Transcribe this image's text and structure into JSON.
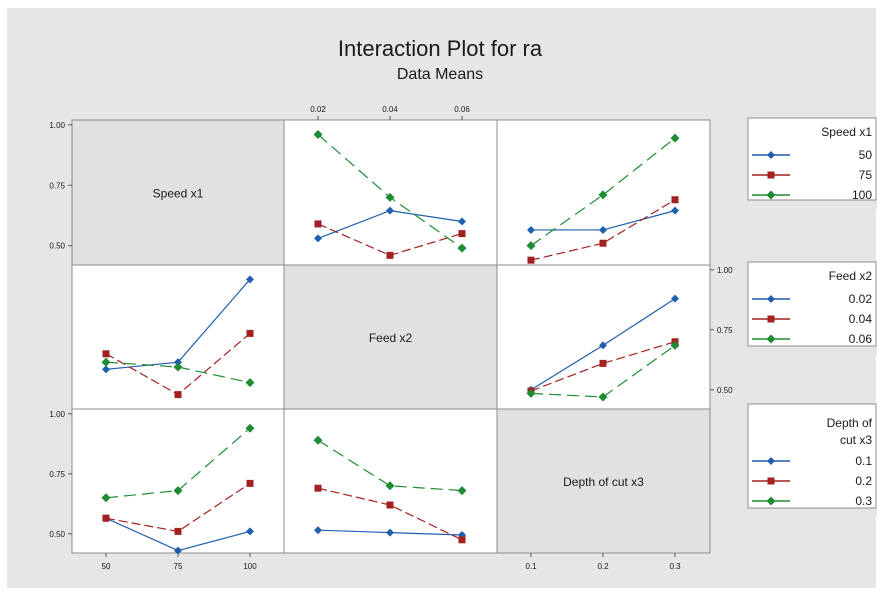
{
  "title": "Interaction Plot for ra",
  "subtitle": "Data Means",
  "colors": {
    "panel_bg": "#e6e6e6",
    "diag_bg": "#e1e1e1",
    "series1": "#1f5fae",
    "series2": "#a32020",
    "series3": "#1e8c32"
  },
  "chart_data": {
    "type": "line",
    "variables": [
      "Speed x1",
      "Feed x2",
      "Depth of cut x3"
    ],
    "levels": {
      "Speed x1": [
        "50",
        "75",
        "100"
      ],
      "Feed x2": [
        "0.02",
        "0.04",
        "0.06"
      ],
      "Depth of cut x3": [
        "0.1",
        "0.2",
        "0.3"
      ]
    },
    "y_ticks": [
      "0.50",
      "0.75",
      "1.00"
    ],
    "ylim": [
      0.42,
      1.02
    ],
    "legends": [
      {
        "title": "Speed x1",
        "entries": [
          "50",
          "75",
          "100"
        ]
      },
      {
        "title": "Feed x2",
        "entries": [
          "0.02",
          "0.04",
          "0.06"
        ]
      },
      {
        "title": "Depth of cut x3",
        "entries": [
          "0.1",
          "0.2",
          "0.3"
        ]
      }
    ],
    "panels": [
      {
        "row": 0,
        "col": 1,
        "x": [
          "0.02",
          "0.04",
          "0.06"
        ],
        "series": [
          {
            "trace": "50",
            "values": [
              0.53,
              0.645,
              0.6
            ]
          },
          {
            "trace": "75",
            "values": [
              0.59,
              0.46,
              0.55
            ]
          },
          {
            "trace": "100",
            "values": [
              0.96,
              0.7,
              0.49
            ]
          }
        ]
      },
      {
        "row": 0,
        "col": 2,
        "x": [
          "0.1",
          "0.2",
          "0.3"
        ],
        "series": [
          {
            "trace": "50",
            "values": [
              0.565,
              0.565,
              0.645
            ]
          },
          {
            "trace": "75",
            "values": [
              0.44,
              0.51,
              0.69
            ]
          },
          {
            "trace": "100",
            "values": [
              0.5,
              0.71,
              0.945
            ]
          }
        ]
      },
      {
        "row": 1,
        "col": 0,
        "x": [
          "50",
          "75",
          "100"
        ],
        "series": [
          {
            "trace": "0.02",
            "values": [
              0.585,
              0.615,
              0.96
            ]
          },
          {
            "trace": "0.04",
            "values": [
              0.65,
              0.48,
              0.735
            ]
          },
          {
            "trace": "0.06",
            "values": [
              0.615,
              0.595,
              0.53
            ]
          }
        ]
      },
      {
        "row": 1,
        "col": 2,
        "x": [
          "0.1",
          "0.2",
          "0.3"
        ],
        "series": [
          {
            "trace": "0.02",
            "values": [
              0.5,
              0.685,
              0.88
            ]
          },
          {
            "trace": "0.04",
            "values": [
              0.495,
              0.61,
              0.7
            ]
          },
          {
            "trace": "0.06",
            "values": [
              0.485,
              0.47,
              0.685
            ]
          }
        ]
      },
      {
        "row": 2,
        "col": 0,
        "x": [
          "50",
          "75",
          "100"
        ],
        "series": [
          {
            "trace": "0.1",
            "values": [
              0.565,
              0.43,
              0.51
            ]
          },
          {
            "trace": "0.2",
            "values": [
              0.565,
              0.51,
              0.71
            ]
          },
          {
            "trace": "0.3",
            "values": [
              0.65,
              0.68,
              0.94
            ]
          }
        ]
      },
      {
        "row": 2,
        "col": 1,
        "x": [
          "0.02",
          "0.04",
          "0.06"
        ],
        "series": [
          {
            "trace": "0.1",
            "values": [
              0.515,
              0.505,
              0.495
            ]
          },
          {
            "trace": "0.2",
            "values": [
              0.69,
              0.62,
              0.475
            ]
          },
          {
            "trace": "0.3",
            "values": [
              0.89,
              0.7,
              0.68
            ]
          }
        ]
      }
    ]
  }
}
